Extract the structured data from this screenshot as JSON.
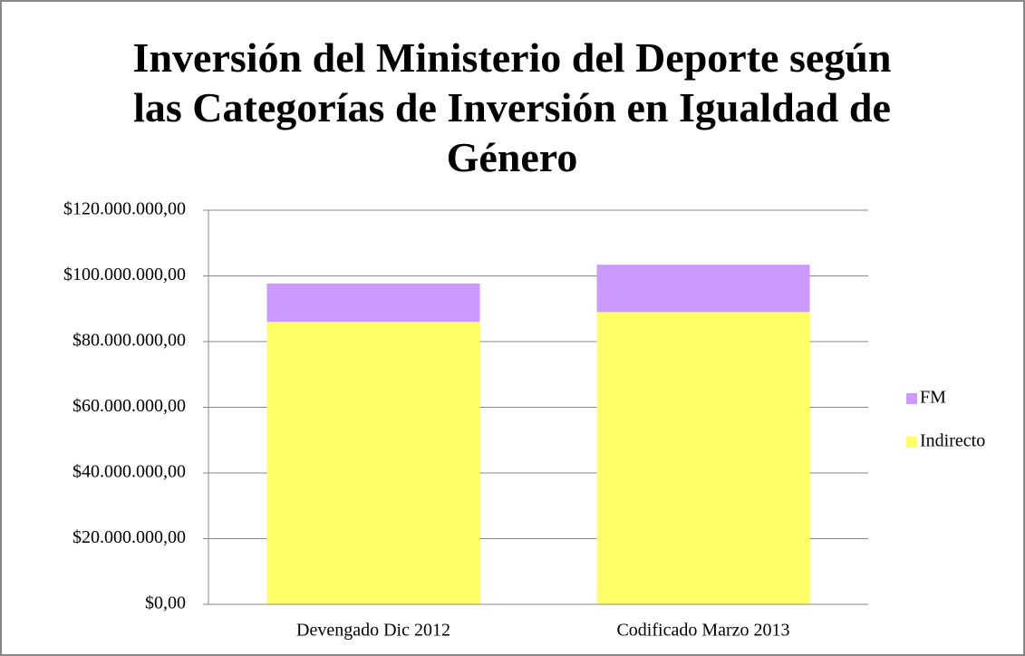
{
  "chart_data": {
    "type": "stacked_bar",
    "title": "Inversión del Ministerio del Deporte según las Categorías de Inversión en Igualdad de Género",
    "categories": [
      "Devengado Dic 2012",
      "Codificado Marzo 2013"
    ],
    "series": [
      {
        "name": "Indirecto",
        "color": "#ffff66",
        "values": [
          86000000,
          89000000
        ]
      },
      {
        "name": "FM",
        "color": "#cc99ff",
        "values": [
          11700000,
          14400000
        ]
      }
    ],
    "ylim": [
      0,
      120000000
    ],
    "yticks": [
      {
        "value": 0,
        "label": "$0,00"
      },
      {
        "value": 20000000,
        "label": "$20.000.000,00"
      },
      {
        "value": 40000000,
        "label": "$40.000.000,00"
      },
      {
        "value": 60000000,
        "label": "$60.000.000,00"
      },
      {
        "value": 80000000,
        "label": "$80.000.000,00"
      },
      {
        "value": 100000000,
        "label": "$100.000.000,00"
      },
      {
        "value": 120000000,
        "label": "$120.000.000,00"
      }
    ],
    "grid": true,
    "legend": "right"
  }
}
